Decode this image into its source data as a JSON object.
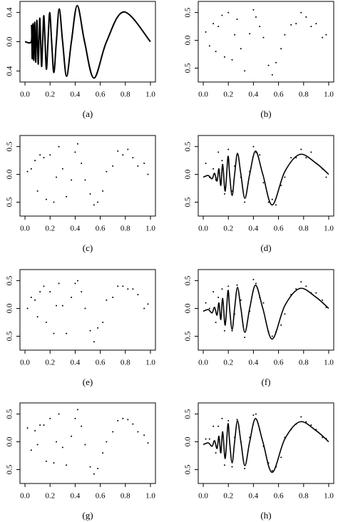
{
  "chart_data": [
    {
      "type": "line",
      "caption": "(a)",
      "xlim": [
        -0.04,
        1.04
      ],
      "ylim": [
        -0.55,
        0.55
      ],
      "xticks": [
        {
          "value": 0,
          "label": "0.0"
        },
        0.2,
        0.4,
        0.6,
        0.8,
        {
          "value": 1,
          "label": "1.0"
        }
      ],
      "yticks": [
        {
          "value": -0.4,
          "label": "0.4"
        },
        {
          "value": 0,
          "label": "0.0"
        },
        0.4
      ],
      "curve": {
        "x": [
          0,
          0.05,
          0.0524,
          0.055,
          0.0577,
          0.0605,
          0.0635,
          0.0667,
          0.07,
          0.0735,
          0.0773,
          0.0813,
          0.0855,
          0.09,
          0.0948,
          0.1,
          0.1056,
          0.1115,
          0.118,
          0.125,
          0.1326,
          0.1409,
          0.15,
          0.16,
          0.1711,
          0.1833,
          0.1971,
          0.2125,
          0.23,
          0.25,
          0.2731,
          0.3,
          0.3318,
          0.37,
          0.4167,
          0.475,
          0.55,
          0.65,
          0.79,
          1.0
        ],
        "y": [
          0,
          0,
          0.223,
          0,
          -0.233,
          0,
          0.244,
          0,
          -0.255,
          0,
          0.267,
          0,
          -0.28,
          0,
          0.293,
          0,
          -0.307,
          0,
          0.323,
          0,
          -0.339,
          0,
          0.357,
          0,
          -0.377,
          0,
          0.398,
          0,
          -0.421,
          0,
          0.446,
          0,
          -0.471,
          0,
          0.493,
          0,
          -0.497,
          0,
          0.407,
          0
        ]
      }
    },
    {
      "type": "scatter",
      "caption": "(b)",
      "xlim": [
        -0.04,
        1.04
      ],
      "ylim": [
        -0.75,
        0.7
      ],
      "xticks": [
        {
          "value": 0,
          "label": "0.0"
        },
        0.2,
        0.4,
        0.6,
        0.8,
        {
          "value": 1,
          "label": "1.0"
        }
      ],
      "yticks": [
        {
          "value": -0.5,
          "label": "0.5"
        },
        {
          "value": 0,
          "label": "0.0"
        },
        0.5
      ],
      "points": {
        "x": [
          0.02,
          0.05,
          0.08,
          0.1,
          0.12,
          0.15,
          0.17,
          0.2,
          0.23,
          0.25,
          0.27,
          0.3,
          0.33,
          0.37,
          0.4,
          0.42,
          0.45,
          0.48,
          0.52,
          0.55,
          0.58,
          0.62,
          0.65,
          0.7,
          0.74,
          0.78,
          0.82,
          0.86,
          0.9,
          0.95,
          0.98
        ],
        "y": [
          0.15,
          -0.1,
          0.3,
          -0.2,
          0.25,
          0.45,
          -0.3,
          0.5,
          -0.35,
          0.1,
          0.38,
          -0.15,
          -0.55,
          0.12,
          0.55,
          0.42,
          0.25,
          0.05,
          -0.45,
          -0.62,
          -0.4,
          -0.15,
          0.1,
          0.28,
          0.3,
          0.5,
          0.42,
          0.25,
          0.3,
          0.05,
          0.1
        ]
      }
    },
    {
      "type": "scatter",
      "caption": "(c)",
      "xlim": [
        -0.04,
        1.04
      ],
      "ylim": [
        -0.75,
        0.7
      ],
      "xticks": [
        {
          "value": 0,
          "label": "0.0"
        },
        0.2,
        0.4,
        0.6,
        0.8,
        {
          "value": 1,
          "label": "1.0"
        }
      ],
      "yticks": [
        {
          "value": -0.5,
          "label": "0.5"
        },
        {
          "value": 0,
          "label": "0.0"
        },
        0.5
      ],
      "points": {
        "x": [
          0.02,
          0.05,
          0.08,
          0.1,
          0.12,
          0.15,
          0.17,
          0.2,
          0.23,
          0.25,
          0.27,
          0.3,
          0.33,
          0.37,
          0.4,
          0.42,
          0.45,
          0.48,
          0.52,
          0.55,
          0.58,
          0.62,
          0.65,
          0.7,
          0.74,
          0.78,
          0.82,
          0.86,
          0.9,
          0.95,
          0.98
        ],
        "y": [
          0.05,
          0.1,
          0.25,
          -0.3,
          0.35,
          0.3,
          -0.45,
          0.35,
          -0.5,
          -0.05,
          0.5,
          0.1,
          -0.4,
          -0.1,
          0.4,
          0.55,
          0.2,
          -0.1,
          -0.35,
          -0.55,
          -0.5,
          -0.3,
          0.05,
          0.15,
          0.42,
          0.35,
          0.45,
          0.3,
          0.15,
          0.2,
          0
        ]
      }
    },
    {
      "type": "scatter",
      "caption": "(d)",
      "xlim": [
        -0.04,
        1.04
      ],
      "ylim": [
        -0.75,
        0.7
      ],
      "xticks": [
        {
          "value": 0,
          "label": "0.0"
        },
        0.2,
        0.4,
        0.6,
        0.8,
        {
          "value": 1,
          "label": "1.0"
        }
      ],
      "yticks": [
        {
          "value": -0.5,
          "label": "0.5"
        },
        {
          "value": 0,
          "label": "0.0"
        },
        0.5
      ],
      "points": {
        "x": [
          0.02,
          0.05,
          0.08,
          0.1,
          0.12,
          0.15,
          0.17,
          0.2,
          0.23,
          0.25,
          0.27,
          0.3,
          0.33,
          0.37,
          0.4,
          0.42,
          0.45,
          0.48,
          0.52,
          0.55,
          0.58,
          0.62,
          0.65,
          0.7,
          0.74,
          0.78,
          0.82,
          0.86,
          0.9,
          0.95,
          0.98
        ],
        "y": [
          0.2,
          -0.05,
          0.1,
          -0.1,
          0.4,
          0.25,
          -0.35,
          0.45,
          -0.3,
          0.15,
          0.35,
          -0.05,
          -0.5,
          0.05,
          0.5,
          0.4,
          0.35,
          -0.15,
          -0.5,
          -0.45,
          -0.55,
          -0.2,
          -0.05,
          0.3,
          0.3,
          0.45,
          0.3,
          0.4,
          0.2,
          0.1,
          -0.05
        ]
      },
      "curve": {
        "x": [
          0,
          0.04,
          0.07,
          0.09,
          0.11,
          0.125,
          0.14,
          0.155,
          0.175,
          0.197,
          0.21,
          0.23,
          0.25,
          0.273,
          0.3,
          0.332,
          0.37,
          0.417,
          0.475,
          0.55,
          0.65,
          0.77,
          0.9,
          1.0
        ],
        "y": [
          -0.05,
          -0.02,
          -0.08,
          0.02,
          -0.12,
          0.1,
          -0.2,
          0.18,
          -0.3,
          0.32,
          0,
          -0.38,
          0,
          0.38,
          0,
          -0.43,
          0,
          0.42,
          0,
          -0.55,
          0.05,
          0.36,
          0.2,
          0
        ]
      }
    },
    {
      "type": "scatter",
      "caption": "(e)",
      "xlim": [
        -0.04,
        1.04
      ],
      "ylim": [
        -0.75,
        0.7
      ],
      "xticks": [
        {
          "value": 0,
          "label": "0.0"
        },
        0.2,
        0.4,
        0.6,
        0.8,
        {
          "value": 1,
          "label": "1.0"
        }
      ],
      "yticks": [
        {
          "value": -0.5,
          "label": "0.5"
        },
        {
          "value": 0,
          "label": "0.0"
        },
        0.5
      ],
      "points": {
        "x": [
          0.02,
          0.05,
          0.08,
          0.1,
          0.12,
          0.15,
          0.17,
          0.2,
          0.23,
          0.25,
          0.27,
          0.3,
          0.33,
          0.37,
          0.4,
          0.42,
          0.45,
          0.48,
          0.52,
          0.55,
          0.58,
          0.62,
          0.65,
          0.7,
          0.74,
          0.78,
          0.82,
          0.86,
          0.9,
          0.95,
          0.98
        ],
        "y": [
          0,
          0.2,
          0.15,
          -0.15,
          0.3,
          0.4,
          -0.25,
          0.3,
          -0.45,
          0.05,
          0.45,
          0.05,
          -0.45,
          0.2,
          0.45,
          0.5,
          0.3,
          0,
          -0.4,
          -0.6,
          -0.35,
          -0.25,
          0.15,
          0.2,
          0.4,
          0.4,
          0.35,
          0.35,
          0.25,
          0,
          0.08
        ]
      }
    },
    {
      "type": "scatter",
      "caption": "(f)",
      "xlim": [
        -0.04,
        1.04
      ],
      "ylim": [
        -0.75,
        0.7
      ],
      "xticks": [
        {
          "value": 0,
          "label": "0.0"
        },
        0.2,
        0.4,
        0.6,
        0.8,
        {
          "value": 1,
          "label": "1.0"
        }
      ],
      "yticks": [
        {
          "value": -0.5,
          "label": "0.5"
        },
        {
          "value": 0,
          "label": "0.0"
        },
        0.5
      ],
      "points": {
        "x": [
          0.02,
          0.05,
          0.08,
          0.1,
          0.12,
          0.15,
          0.17,
          0.2,
          0.23,
          0.25,
          0.27,
          0.3,
          0.33,
          0.37,
          0.4,
          0.42,
          0.45,
          0.48,
          0.52,
          0.55,
          0.58,
          0.62,
          0.65,
          0.7,
          0.74,
          0.78,
          0.82,
          0.86,
          0.9,
          0.95,
          0.98
        ],
        "y": [
          0.1,
          0,
          0.3,
          -0.25,
          0.2,
          0.35,
          -0.4,
          0.4,
          -0.4,
          -0.1,
          0.42,
          0.15,
          -0.52,
          -0.05,
          0.52,
          0.45,
          0.2,
          0.1,
          -0.42,
          -0.5,
          -0.42,
          -0.3,
          -0.1,
          0.25,
          0.35,
          0.48,
          0.4,
          0.28,
          0.28,
          0.15,
          0.02
        ]
      },
      "curve": {
        "x": [
          0,
          0.04,
          0.07,
          0.09,
          0.11,
          0.125,
          0.14,
          0.155,
          0.175,
          0.197,
          0.21,
          0.23,
          0.25,
          0.273,
          0.3,
          0.332,
          0.37,
          0.417,
          0.475,
          0.55,
          0.65,
          0.77,
          0.9,
          1.0
        ],
        "y": [
          -0.05,
          -0.02,
          -0.08,
          0.02,
          -0.12,
          0.1,
          -0.2,
          0.18,
          -0.3,
          0.32,
          0,
          -0.38,
          0,
          0.38,
          0,
          -0.43,
          0,
          0.42,
          0,
          -0.55,
          0.05,
          0.36,
          0.2,
          0
        ]
      }
    },
    {
      "type": "scatter",
      "caption": "(g)",
      "xlim": [
        -0.04,
        1.04
      ],
      "ylim": [
        -0.75,
        0.7
      ],
      "xticks": [
        {
          "value": 0,
          "label": "0.0"
        },
        0.2,
        0.4,
        0.6,
        0.8,
        {
          "value": 1,
          "label": "1.0"
        }
      ],
      "yticks": [
        {
          "value": -0.5,
          "label": "0.5"
        },
        {
          "value": 0,
          "label": "0.0"
        },
        0.5
      ],
      "points": {
        "x": [
          0.02,
          0.05,
          0.08,
          0.1,
          0.12,
          0.15,
          0.17,
          0.2,
          0.23,
          0.25,
          0.27,
          0.3,
          0.33,
          0.37,
          0.4,
          0.42,
          0.45,
          0.48,
          0.52,
          0.55,
          0.58,
          0.62,
          0.65,
          0.7,
          0.74,
          0.78,
          0.82,
          0.86,
          0.9,
          0.95,
          0.98
        ],
        "y": [
          0.25,
          -0.15,
          0.2,
          -0.05,
          0.3,
          0.3,
          -0.35,
          0.42,
          -0.38,
          0,
          0.5,
          -0.1,
          -0.42,
          0.1,
          0.42,
          0.58,
          0.28,
          -0.05,
          -0.45,
          -0.58,
          -0.48,
          -0.2,
          0,
          0.18,
          0.38,
          0.42,
          0.4,
          0.32,
          0.18,
          0.12,
          -0.02
        ]
      }
    },
    {
      "type": "scatter",
      "caption": "(h)",
      "xlim": [
        -0.04,
        1.04
      ],
      "ylim": [
        -0.75,
        0.7
      ],
      "xticks": [
        {
          "value": 0,
          "label": "0.0"
        },
        0.2,
        0.4,
        0.6,
        0.8,
        {
          "value": 1,
          "label": "1.0"
        }
      ],
      "yticks": [
        {
          "value": -0.5,
          "label": "0.5"
        },
        {
          "value": 0,
          "label": "0.0"
        },
        0.5
      ],
      "points": {
        "x": [
          0.02,
          0.05,
          0.08,
          0.1,
          0.12,
          0.15,
          0.17,
          0.2,
          0.23,
          0.25,
          0.27,
          0.3,
          0.33,
          0.37,
          0.4,
          0.42,
          0.45,
          0.48,
          0.52,
          0.55,
          0.58,
          0.62,
          0.65,
          0.7,
          0.74,
          0.78,
          0.82,
          0.86,
          0.9,
          0.95,
          0.98
        ],
        "y": [
          0.05,
          0.05,
          0.28,
          -0.2,
          0.28,
          0.42,
          -0.42,
          0.38,
          -0.45,
          0.08,
          0.4,
          0,
          -0.48,
          0.08,
          0.48,
          0.5,
          0.22,
          -0.08,
          -0.38,
          -0.52,
          -0.45,
          -0.28,
          0.08,
          0.22,
          0.32,
          0.45,
          0.36,
          0.3,
          0.22,
          0.08,
          0.06
        ]
      },
      "curve": {
        "x": [
          0,
          0.04,
          0.07,
          0.09,
          0.11,
          0.125,
          0.14,
          0.155,
          0.175,
          0.197,
          0.21,
          0.23,
          0.25,
          0.273,
          0.3,
          0.332,
          0.37,
          0.417,
          0.475,
          0.55,
          0.65,
          0.77,
          0.9,
          1.0
        ],
        "y": [
          -0.05,
          -0.02,
          -0.08,
          0.02,
          -0.12,
          0.1,
          -0.2,
          0.18,
          -0.3,
          0.32,
          0,
          -0.38,
          0,
          0.38,
          0,
          -0.43,
          0,
          0.42,
          0,
          -0.55,
          0.05,
          0.36,
          0.2,
          0
        ]
      }
    }
  ]
}
